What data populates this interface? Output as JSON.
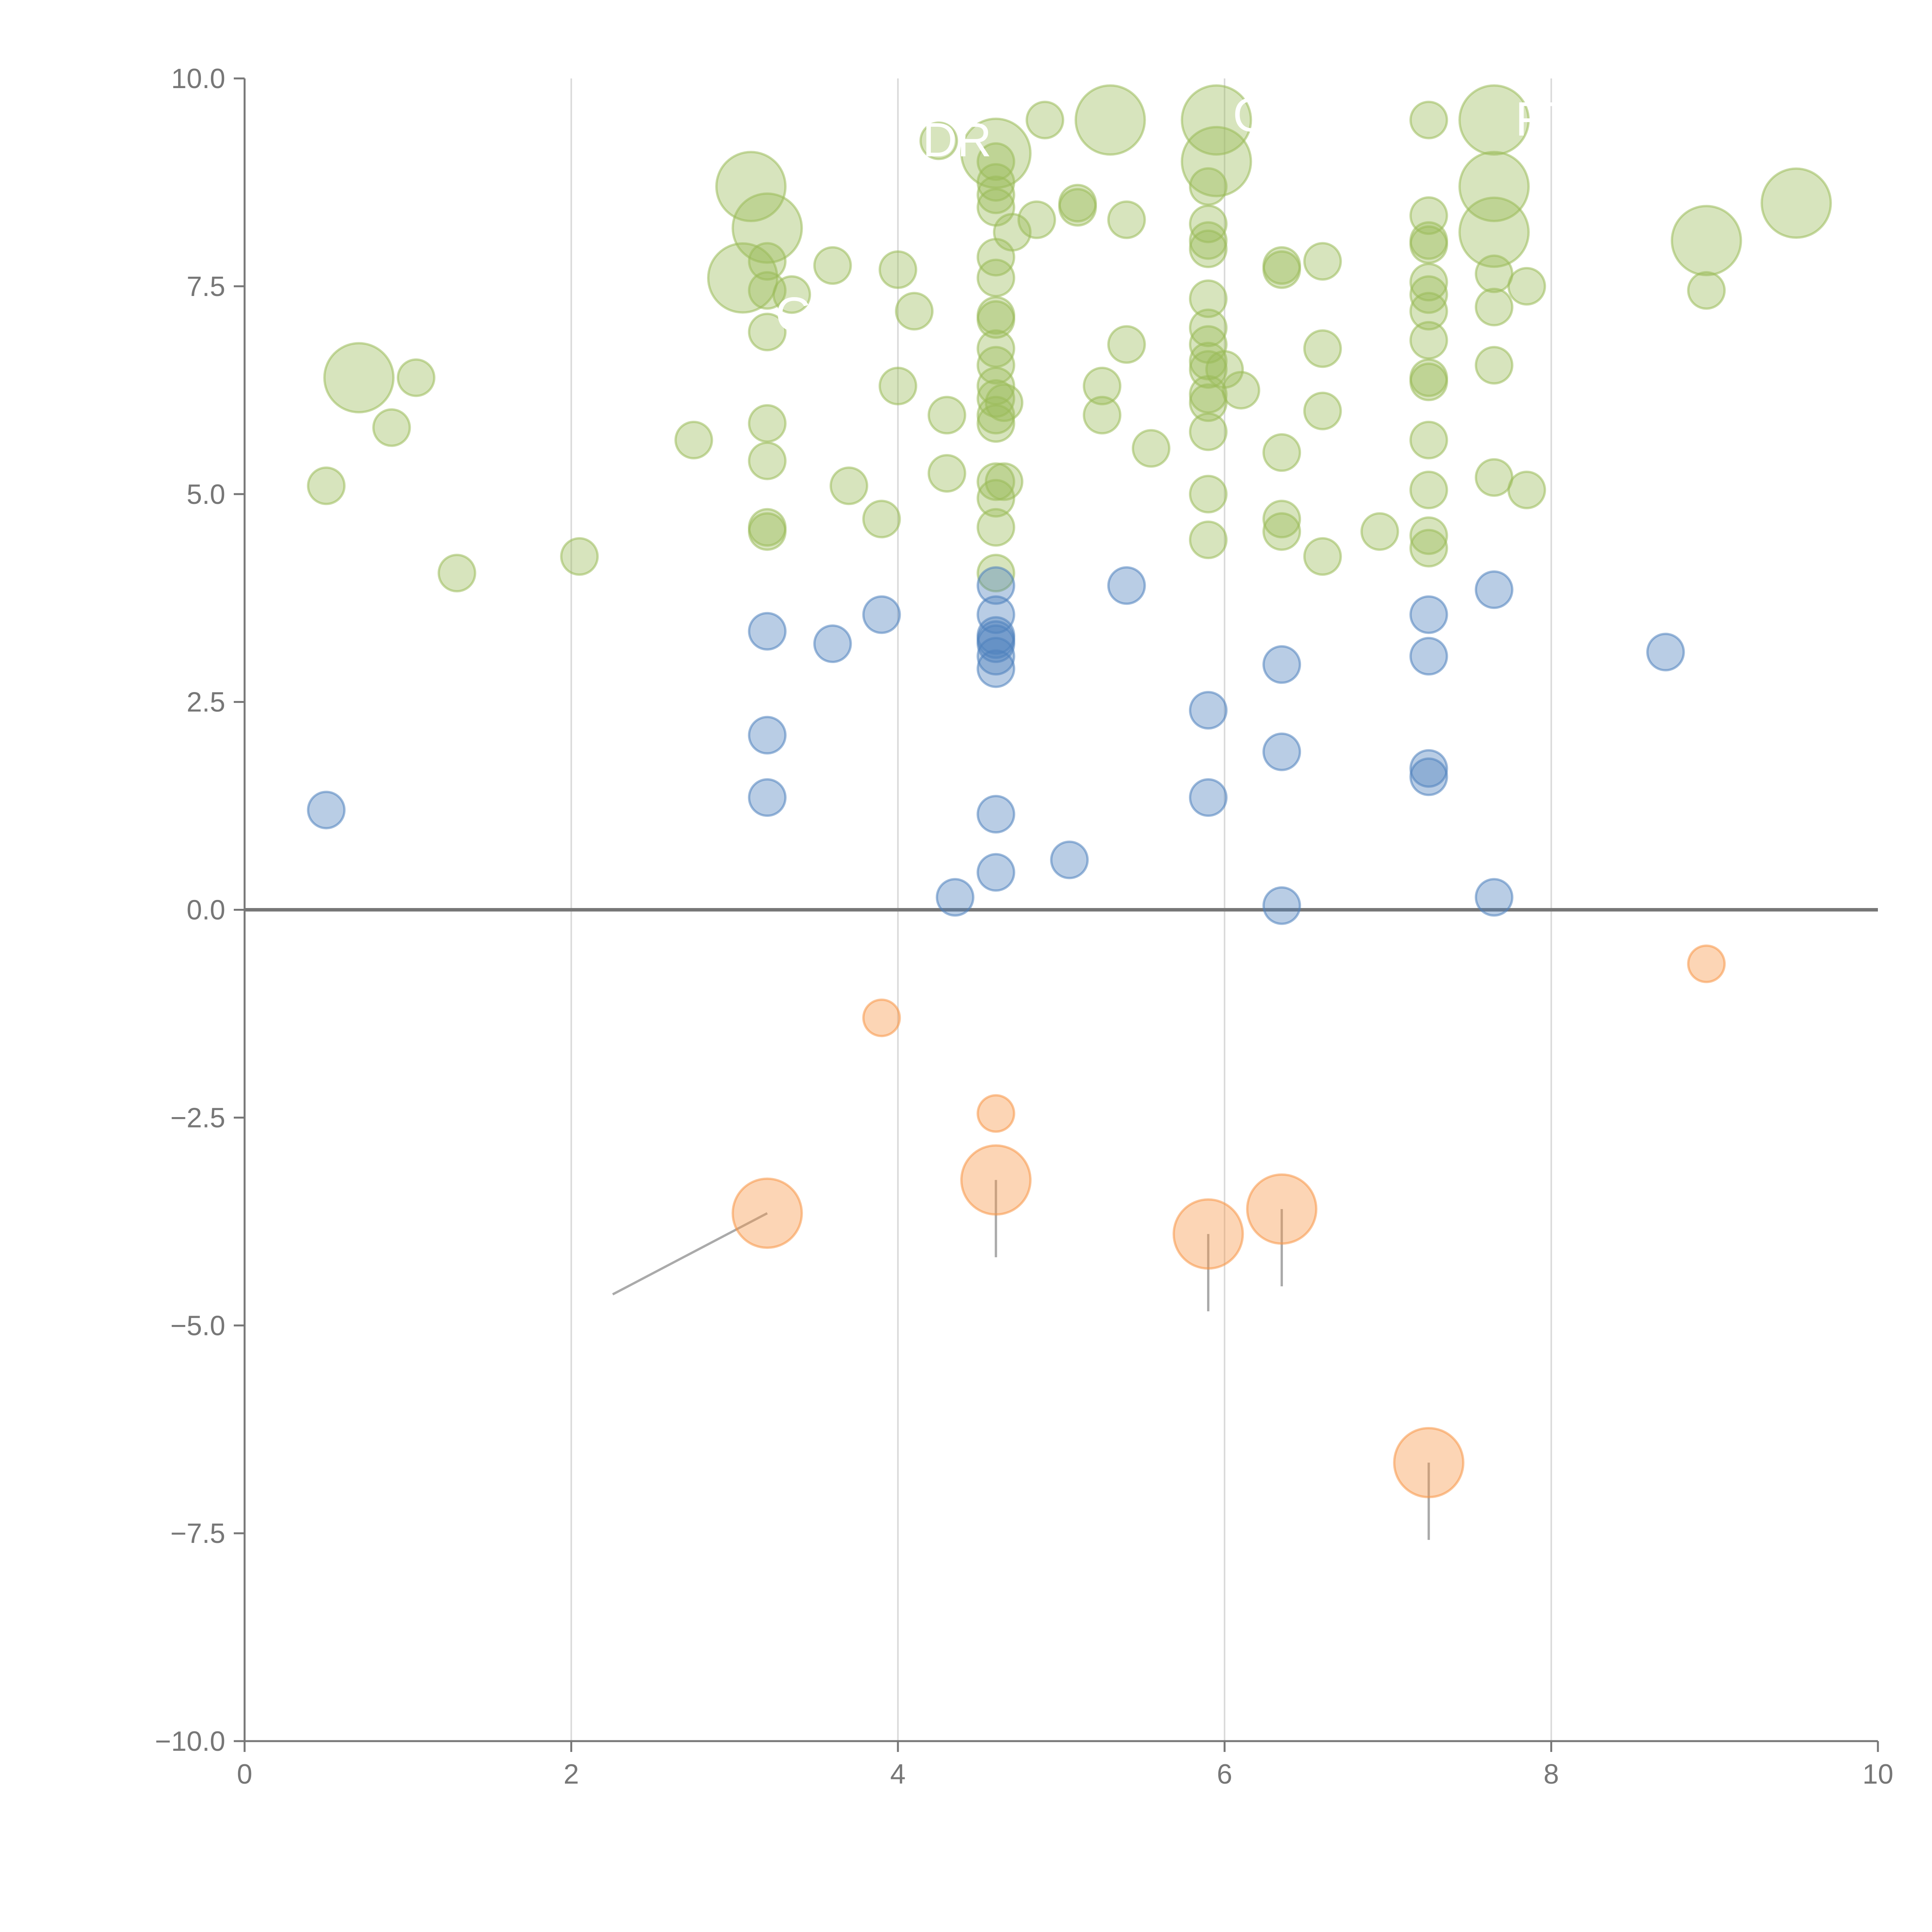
{
  "colors": {
    "positive": "#9bbb59",
    "moderate": "#4f81bd",
    "negative": "#f79646",
    "axis": "#777777",
    "grid": "#d9d9d9",
    "background": "#ffffff"
  },
  "chart_data": {
    "type": "scatter",
    "xlim": [
      0,
      10
    ],
    "ylim": [
      -10,
      10
    ],
    "x_ticks": [
      {
        "value": 0,
        "label": "0"
      },
      {
        "value": 2,
        "label": "2"
      },
      {
        "value": 4,
        "label": "4"
      },
      {
        "value": 6,
        "label": "6"
      },
      {
        "value": 8,
        "label": "8"
      },
      {
        "value": 10,
        "label": "10"
      }
    ],
    "y_ticks": [
      {
        "value": 10,
        "label": "10.0"
      },
      {
        "value": 7.5,
        "label": "7.5"
      },
      {
        "value": 5,
        "label": "5.0"
      },
      {
        "value": 2.5,
        "label": "2.5"
      },
      {
        "value": 0,
        "label": "0.0"
      },
      {
        "value": -2.5,
        "label": "−2.5"
      },
      {
        "value": -5,
        "label": "−5.0"
      },
      {
        "value": -7.5,
        "label": "−7.5"
      },
      {
        "value": -10,
        "label": "−10.0"
      }
    ],
    "vertical_gridlines": [
      2,
      4,
      6,
      8
    ],
    "zero_line": 0,
    "series": [
      {
        "group": "positive",
        "points": [
          [
            0.7,
            6.4,
            2
          ],
          [
            3.1,
            8.7,
            2
          ],
          [
            3.05,
            7.6,
            2
          ],
          [
            3.2,
            8.2,
            2
          ],
          [
            4.6,
            9.1,
            2
          ],
          [
            5.3,
            9.5,
            2
          ],
          [
            5.95,
            9.5,
            2
          ],
          [
            5.95,
            9.0,
            2
          ],
          [
            7.65,
            9.5,
            2
          ],
          [
            7.65,
            8.7,
            2
          ],
          [
            7.65,
            8.15,
            2
          ],
          [
            8.95,
            8.05,
            2
          ],
          [
            9.5,
            8.5,
            2
          ],
          [
            0.5,
            5.1,
            1
          ],
          [
            0.9,
            5.8,
            1
          ],
          [
            1.05,
            6.4,
            1
          ],
          [
            1.3,
            4.05,
            1
          ],
          [
            2.05,
            4.25,
            1
          ],
          [
            2.75,
            5.65,
            1
          ],
          [
            3.2,
            5.85,
            1
          ],
          [
            3.2,
            5.4,
            1
          ],
          [
            3.2,
            4.6,
            1
          ],
          [
            3.2,
            4.55,
            1
          ],
          [
            3.2,
            7.8,
            1
          ],
          [
            3.2,
            7.45,
            1
          ],
          [
            3.2,
            6.95,
            1
          ],
          [
            3.35,
            7.4,
            1
          ],
          [
            3.6,
            7.75,
            1
          ],
          [
            3.7,
            5.1,
            1
          ],
          [
            3.9,
            4.7,
            1
          ],
          [
            4.0,
            6.3,
            1
          ],
          [
            4.0,
            7.7,
            1
          ],
          [
            4.1,
            7.2,
            1
          ],
          [
            4.25,
            9.25,
            1
          ],
          [
            4.3,
            5.95,
            1
          ],
          [
            4.3,
            5.25,
            1
          ],
          [
            4.6,
            9.0,
            1
          ],
          [
            4.6,
            8.75,
            1
          ],
          [
            4.6,
            8.6,
            1
          ],
          [
            4.6,
            8.45,
            1
          ],
          [
            4.6,
            7.85,
            1
          ],
          [
            4.6,
            7.6,
            1
          ],
          [
            4.6,
            7.15,
            1
          ],
          [
            4.6,
            7.1,
            1
          ],
          [
            4.6,
            6.75,
            1
          ],
          [
            4.6,
            6.55,
            1
          ],
          [
            4.6,
            6.3,
            1
          ],
          [
            4.6,
            6.15,
            1
          ],
          [
            4.6,
            5.95,
            1
          ],
          [
            4.6,
            5.85,
            1
          ],
          [
            4.6,
            5.15,
            1
          ],
          [
            4.6,
            4.95,
            1
          ],
          [
            4.6,
            4.6,
            1
          ],
          [
            4.6,
            4.05,
            1
          ],
          [
            4.65,
            5.15,
            1
          ],
          [
            4.65,
            6.1,
            1
          ],
          [
            4.7,
            8.15,
            1
          ],
          [
            4.85,
            8.3,
            1
          ],
          [
            4.9,
            9.5,
            1
          ],
          [
            5.1,
            8.5,
            1
          ],
          [
            5.1,
            8.45,
            1
          ],
          [
            5.25,
            6.3,
            1
          ],
          [
            5.25,
            5.95,
            1
          ],
          [
            5.4,
            6.8,
            1
          ],
          [
            5.4,
            8.3,
            1
          ],
          [
            5.55,
            5.55,
            1
          ],
          [
            5.9,
            8.7,
            1
          ],
          [
            5.9,
            8.25,
            1
          ],
          [
            5.9,
            8.05,
            1
          ],
          [
            5.9,
            7.95,
            1
          ],
          [
            5.9,
            7.35,
            1
          ],
          [
            5.9,
            7.0,
            1
          ],
          [
            5.9,
            6.8,
            1
          ],
          [
            5.9,
            6.6,
            1
          ],
          [
            5.9,
            6.5,
            1
          ],
          [
            5.9,
            6.2,
            1
          ],
          [
            5.9,
            6.1,
            1
          ],
          [
            5.9,
            5.75,
            1
          ],
          [
            5.9,
            5.0,
            1
          ],
          [
            5.9,
            4.45,
            1
          ],
          [
            6.0,
            6.5,
            1
          ],
          [
            6.1,
            6.25,
            1
          ],
          [
            6.35,
            7.75,
            1
          ],
          [
            6.35,
            7.7,
            1
          ],
          [
            6.35,
            5.5,
            1
          ],
          [
            6.35,
            4.7,
            1
          ],
          [
            6.35,
            4.55,
            1
          ],
          [
            6.6,
            7.8,
            1
          ],
          [
            6.6,
            6.75,
            1
          ],
          [
            6.6,
            6.0,
            1
          ],
          [
            6.6,
            4.25,
            1
          ],
          [
            6.95,
            4.55,
            1
          ],
          [
            7.25,
            8.35,
            1
          ],
          [
            7.25,
            8.05,
            1
          ],
          [
            7.25,
            8.0,
            1
          ],
          [
            7.25,
            7.55,
            1
          ],
          [
            7.25,
            7.4,
            1
          ],
          [
            7.25,
            7.2,
            1
          ],
          [
            7.25,
            6.85,
            1
          ],
          [
            7.25,
            6.4,
            1
          ],
          [
            7.25,
            6.35,
            1
          ],
          [
            7.25,
            5.65,
            1
          ],
          [
            7.25,
            5.05,
            1
          ],
          [
            7.25,
            4.5,
            1
          ],
          [
            7.25,
            4.35,
            1
          ],
          [
            7.65,
            7.65,
            1
          ],
          [
            7.65,
            7.25,
            1
          ],
          [
            7.65,
            6.55,
            1
          ],
          [
            7.65,
            5.2,
            1
          ],
          [
            7.85,
            7.5,
            1
          ],
          [
            7.85,
            5.05,
            1
          ],
          [
            8.95,
            7.45,
            1
          ],
          [
            7.25,
            9.5,
            0.7
          ]
        ]
      },
      {
        "group": "moderate",
        "points": [
          [
            0.5,
            1.2,
            1
          ],
          [
            3.2,
            3.35,
            1
          ],
          [
            3.2,
            2.1,
            1
          ],
          [
            3.2,
            1.35,
            1
          ],
          [
            3.6,
            3.2,
            1
          ],
          [
            3.9,
            3.55,
            1
          ],
          [
            4.35,
            0.15,
            1
          ],
          [
            4.6,
            3.9,
            1
          ],
          [
            4.6,
            3.55,
            1
          ],
          [
            4.6,
            3.3,
            1
          ],
          [
            4.6,
            3.25,
            1
          ],
          [
            4.6,
            3.2,
            1
          ],
          [
            4.6,
            3.05,
            1
          ],
          [
            4.6,
            2.9,
            1
          ],
          [
            4.6,
            1.15,
            1
          ],
          [
            4.6,
            0.45,
            1
          ],
          [
            5.05,
            0.6,
            1
          ],
          [
            5.4,
            3.9,
            1
          ],
          [
            5.9,
            2.4,
            1
          ],
          [
            5.9,
            1.35,
            1
          ],
          [
            6.35,
            2.95,
            1
          ],
          [
            6.35,
            1.9,
            1
          ],
          [
            6.35,
            0.05,
            1
          ],
          [
            7.25,
            3.55,
            1
          ],
          [
            7.25,
            3.05,
            1
          ],
          [
            7.25,
            1.7,
            1
          ],
          [
            7.25,
            1.6,
            1
          ],
          [
            7.65,
            3.85,
            1
          ],
          [
            7.65,
            0.15,
            1
          ],
          [
            8.7,
            3.1,
            1
          ]
        ]
      },
      {
        "group": "negative",
        "points": [
          [
            3.2,
            -3.65,
            2
          ],
          [
            4.6,
            -3.25,
            2
          ],
          [
            5.9,
            -3.9,
            2
          ],
          [
            6.35,
            -3.6,
            2
          ],
          [
            7.25,
            -6.65,
            2
          ],
          [
            3.9,
            -1.3,
            1
          ],
          [
            4.6,
            -2.45,
            1
          ],
          [
            8.95,
            -0.65,
            1
          ]
        ]
      }
    ],
    "point_labels": [
      {
        "text": "FT",
        "x": 7.78,
        "y": 9.5
      },
      {
        "text": "GI",
        "x": 6.05,
        "y": 9.55
      },
      {
        "text": "DR",
        "x": 4.15,
        "y": 9.25
      },
      {
        "text": "E",
        "x": 6.05,
        "y": 8.2
      },
      {
        "text": "G",
        "x": 3.25,
        "y": 7.15
      }
    ]
  }
}
